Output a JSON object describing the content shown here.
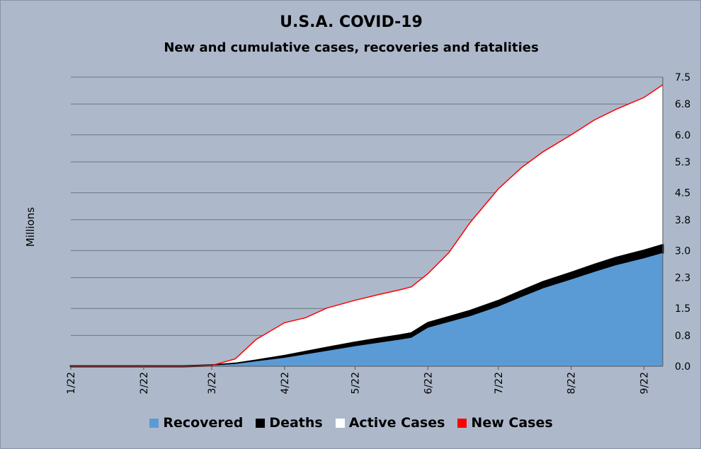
{
  "chart_data": {
    "type": "area",
    "title": "U.S.A. COVID-19",
    "subtitle": "New and cumulative cases, recoveries and fatalities",
    "ylabel": "Millions",
    "xlabel": "",
    "x_ticks": [
      "1/22",
      "2/22",
      "3/22",
      "4/22",
      "5/22",
      "6/22",
      "7/22",
      "8/22",
      "9/22"
    ],
    "y_ticks": [
      "0.0",
      "0.8",
      "1.5",
      "2.3",
      "3.0",
      "3.8",
      "4.5",
      "5.3",
      "6.0",
      "6.8",
      "7.5"
    ],
    "ylim": [
      0,
      7.5
    ],
    "xlim": [
      "1/22",
      "9/30"
    ],
    "y_axis_side": "right",
    "grid": true,
    "legend_position": "bottom",
    "x": [
      "1/22",
      "3/1",
      "3/10",
      "3/22",
      "4/1",
      "4/10",
      "4/22",
      "5/1",
      "5/10",
      "5/22",
      "6/1",
      "6/10",
      "6/15",
      "6/22",
      "7/1",
      "7/10",
      "7/22",
      "8/1",
      "8/10",
      "8/22",
      "9/1",
      "9/10",
      "9/22",
      "9/30"
    ],
    "series": [
      {
        "name": "Recovered",
        "color": "#5b9bd5",
        "values": [
          0,
          0,
          0,
          0.02,
          0.06,
          0.13,
          0.22,
          0.31,
          0.4,
          0.52,
          0.61,
          0.69,
          0.74,
          1.0,
          1.15,
          1.3,
          1.55,
          1.8,
          2.02,
          2.25,
          2.45,
          2.62,
          2.8,
          2.94
        ]
      },
      {
        "name": "Deaths",
        "color": "#000000",
        "values": [
          0,
          0,
          0,
          0.003,
          0.008,
          0.02,
          0.05,
          0.065,
          0.08,
          0.095,
          0.105,
          0.112,
          0.116,
          0.122,
          0.128,
          0.135,
          0.145,
          0.155,
          0.164,
          0.175,
          0.185,
          0.192,
          0.2,
          0.205
        ]
      },
      {
        "name": "Active Cases",
        "color": "#ffffff",
        "values": [
          0,
          0,
          0,
          0.0,
          0.12,
          0.55,
          0.86,
          0.88,
          1.03,
          1.09,
          1.14,
          1.18,
          1.2,
          1.28,
          1.67,
          2.29,
          2.9,
          3.2,
          3.37,
          3.57,
          3.75,
          3.85,
          3.97,
          4.16
        ]
      },
      {
        "name": "New Cases",
        "color": "#ff0000",
        "values": [
          0,
          0,
          0,
          0.02,
          0.19,
          0.7,
          1.13,
          1.26,
          1.51,
          1.71,
          1.86,
          1.98,
          2.06,
          2.4,
          2.95,
          3.73,
          4.6,
          5.16,
          5.56,
          6.0,
          6.39,
          6.66,
          6.97,
          7.3
        ]
      }
    ]
  }
}
